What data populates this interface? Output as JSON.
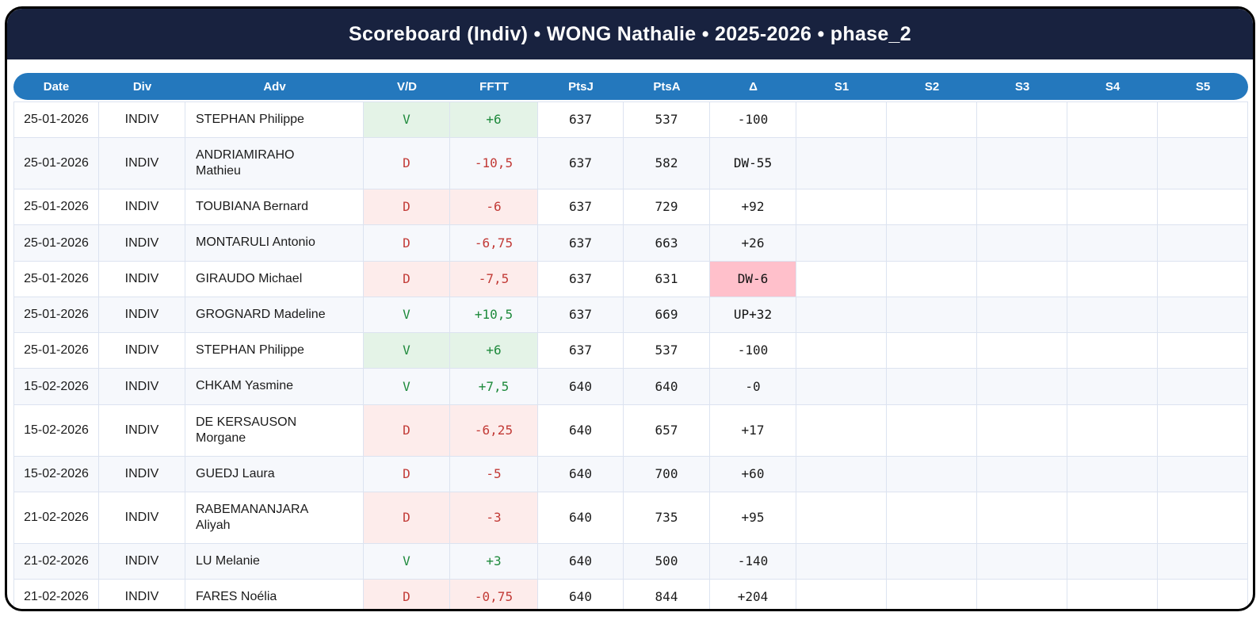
{
  "title": "Scoreboard (Indiv) • WONG Nathalie • 2025-2026 • phase_2",
  "colors": {
    "navy": "#18223f",
    "blue": "#2478bd",
    "win_bg": "#e4f3e7",
    "win_text": "#1e8a3c",
    "loss_bg": "#fdeceb",
    "loss_text": "#c23a36",
    "dw_bg": "#ffc0cb",
    "up_bg": "#c0abdc"
  },
  "table": {
    "columns": [
      "Date",
      "Div",
      "Adv",
      "V/D",
      "FFTT",
      "PtsJ",
      "PtsA",
      "Δ",
      "S1",
      "S2",
      "S3",
      "S4",
      "S5"
    ],
    "rows": [
      {
        "date": "25-01-2026",
        "div": "INDIV",
        "adv": "STEPHAN Philippe",
        "vd": "V",
        "fftt": "+6",
        "ptsj": "637",
        "ptsa": "537",
        "delta": "-100",
        "outcome": "win",
        "delta_kind": "plain",
        "s1": "",
        "s2": "",
        "s3": "",
        "s4": "",
        "s5": ""
      },
      {
        "date": "25-01-2026",
        "div": "INDIV",
        "adv": "ANDRIAMIRAHO Mathieu",
        "vd": "D",
        "fftt": "-10,5",
        "ptsj": "637",
        "ptsa": "582",
        "delta": "DW-55",
        "outcome": "loss",
        "delta_kind": "dw",
        "s1": "",
        "s2": "",
        "s3": "",
        "s4": "",
        "s5": ""
      },
      {
        "date": "25-01-2026",
        "div": "INDIV",
        "adv": "TOUBIANA Bernard",
        "vd": "D",
        "fftt": "-6",
        "ptsj": "637",
        "ptsa": "729",
        "delta": "+92",
        "outcome": "loss",
        "delta_kind": "plain",
        "s1": "",
        "s2": "",
        "s3": "",
        "s4": "",
        "s5": ""
      },
      {
        "date": "25-01-2026",
        "div": "INDIV",
        "adv": "MONTARULI Antonio",
        "vd": "D",
        "fftt": "-6,75",
        "ptsj": "637",
        "ptsa": "663",
        "delta": "+26",
        "outcome": "loss",
        "delta_kind": "plain",
        "s1": "",
        "s2": "",
        "s3": "",
        "s4": "",
        "s5": ""
      },
      {
        "date": "25-01-2026",
        "div": "INDIV",
        "adv": "GIRAUDO Michael",
        "vd": "D",
        "fftt": "-7,5",
        "ptsj": "637",
        "ptsa": "631",
        "delta": "DW-6",
        "outcome": "loss",
        "delta_kind": "dw",
        "s1": "",
        "s2": "",
        "s3": "",
        "s4": "",
        "s5": ""
      },
      {
        "date": "25-01-2026",
        "div": "INDIV",
        "adv": "GROGNARD Madeline",
        "vd": "V",
        "fftt": "+10,5",
        "ptsj": "637",
        "ptsa": "669",
        "delta": "UP+32",
        "outcome": "win",
        "delta_kind": "up",
        "s1": "",
        "s2": "",
        "s3": "",
        "s4": "",
        "s5": ""
      },
      {
        "date": "25-01-2026",
        "div": "INDIV",
        "adv": "STEPHAN Philippe",
        "vd": "V",
        "fftt": "+6",
        "ptsj": "637",
        "ptsa": "537",
        "delta": "-100",
        "outcome": "win",
        "delta_kind": "plain",
        "s1": "",
        "s2": "",
        "s3": "",
        "s4": "",
        "s5": ""
      },
      {
        "date": "15-02-2026",
        "div": "INDIV",
        "adv": "CHKAM Yasmine",
        "vd": "V",
        "fftt": "+7,5",
        "ptsj": "640",
        "ptsa": "640",
        "delta": "-0",
        "outcome": "win",
        "delta_kind": "plain",
        "s1": "",
        "s2": "",
        "s3": "",
        "s4": "",
        "s5": ""
      },
      {
        "date": "15-02-2026",
        "div": "INDIV",
        "adv": "DE KERSAUSON Morgane",
        "vd": "D",
        "fftt": "-6,25",
        "ptsj": "640",
        "ptsa": "657",
        "delta": "+17",
        "outcome": "loss",
        "delta_kind": "plain",
        "s1": "",
        "s2": "",
        "s3": "",
        "s4": "",
        "s5": ""
      },
      {
        "date": "15-02-2026",
        "div": "INDIV",
        "adv": "GUEDJ Laura",
        "vd": "D",
        "fftt": "-5",
        "ptsj": "640",
        "ptsa": "700",
        "delta": "+60",
        "outcome": "loss",
        "delta_kind": "plain",
        "s1": "",
        "s2": "",
        "s3": "",
        "s4": "",
        "s5": ""
      },
      {
        "date": "21-02-2026",
        "div": "INDIV",
        "adv": "RABEMANANJARA Aliyah",
        "vd": "D",
        "fftt": "-3",
        "ptsj": "640",
        "ptsa": "735",
        "delta": "+95",
        "outcome": "loss",
        "delta_kind": "plain",
        "s1": "",
        "s2": "",
        "s3": "",
        "s4": "",
        "s5": ""
      },
      {
        "date": "21-02-2026",
        "div": "INDIV",
        "adv": "LU Melanie",
        "vd": "V",
        "fftt": "+3",
        "ptsj": "640",
        "ptsa": "500",
        "delta": "-140",
        "outcome": "win",
        "delta_kind": "plain",
        "s1": "",
        "s2": "",
        "s3": "",
        "s4": "",
        "s5": ""
      },
      {
        "date": "21-02-2026",
        "div": "INDIV",
        "adv": "FARES Noélia",
        "vd": "D",
        "fftt": "-0,75",
        "ptsj": "640",
        "ptsa": "844",
        "delta": "+204",
        "outcome": "loss",
        "delta_kind": "plain",
        "s1": "",
        "s2": "",
        "s3": "",
        "s4": "",
        "s5": ""
      }
    ]
  }
}
